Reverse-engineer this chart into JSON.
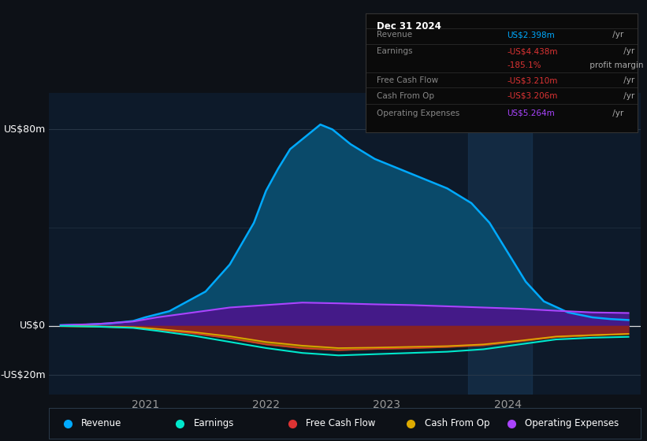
{
  "bg_color": "#0d1117",
  "plot_bg_color": "#0d1a2a",
  "grid_color": "#2a3a4a",
  "y_label_80": "US$80m",
  "y_label_0": "US$0",
  "y_label_neg20": "-US$20m",
  "ylim": [
    -28,
    95
  ],
  "xlim": [
    2020.2,
    2025.1
  ],
  "revenue_color": "#00aaff",
  "revenue_fill": "#0a4a6a",
  "earnings_color": "#00e8cc",
  "fcf_color": "#dd3333",
  "fcf_fill": "#882222",
  "cashfromop_color": "#ddaa00",
  "cashfromop_fill": "#886600",
  "opex_color": "#aa44ff",
  "opex_fill": "#441a88",
  "highlight_x_start": 2023.67,
  "highlight_x_end": 2024.2,
  "highlight_color": "#1a3a5a",
  "info_box": {
    "title": "Dec 31 2024",
    "bg": "#0a0a0a",
    "border": "#333333",
    "rows": [
      {
        "label": "Revenue",
        "value": "US$2.398m",
        "value_color": "#00aaff",
        "suffix": " /yr",
        "suffix_color": "#aaaaaa"
      },
      {
        "label": "Earnings",
        "value": "-US$4.438m",
        "value_color": "#dd3333",
        "suffix": " /yr",
        "suffix_color": "#aaaaaa"
      },
      {
        "label": "",
        "value": "-185.1%",
        "value_color": "#dd3333",
        "suffix": " profit margin",
        "suffix_color": "#aaaaaa"
      },
      {
        "label": "Free Cash Flow",
        "value": "-US$3.210m",
        "value_color": "#dd3333",
        "suffix": " /yr",
        "suffix_color": "#aaaaaa"
      },
      {
        "label": "Cash From Op",
        "value": "-US$3.206m",
        "value_color": "#dd3333",
        "suffix": " /yr",
        "suffix_color": "#aaaaaa"
      },
      {
        "label": "Operating Expenses",
        "value": "US$5.264m",
        "value_color": "#aa44ff",
        "suffix": " /yr",
        "suffix_color": "#aaaaaa"
      }
    ]
  },
  "legend": [
    {
      "label": "Revenue",
      "color": "#00aaff"
    },
    {
      "label": "Earnings",
      "color": "#00e8cc"
    },
    {
      "label": "Free Cash Flow",
      "color": "#dd3333"
    },
    {
      "label": "Cash From Op",
      "color": "#ddaa00"
    },
    {
      "label": "Operating Expenses",
      "color": "#aa44ff"
    }
  ],
  "x_revenue": [
    2020.3,
    2020.5,
    2020.7,
    2020.9,
    2021.0,
    2021.2,
    2021.5,
    2021.7,
    2021.9,
    2022.0,
    2022.1,
    2022.2,
    2022.35,
    2022.45,
    2022.55,
    2022.7,
    2022.9,
    2023.1,
    2023.3,
    2023.5,
    2023.7,
    2023.85,
    2024.0,
    2024.15,
    2024.3,
    2024.5,
    2024.7,
    2024.85,
    2025.0
  ],
  "y_revenue": [
    0.3,
    0.5,
    1.0,
    2.0,
    3.5,
    6.0,
    14.0,
    25.0,
    42.0,
    55.0,
    64.0,
    72.0,
    78.0,
    82.0,
    80.0,
    74.0,
    68.0,
    64.0,
    60.0,
    56.0,
    50.0,
    42.0,
    30.0,
    18.0,
    10.0,
    5.5,
    3.5,
    2.8,
    2.4
  ],
  "x_opex": [
    2020.3,
    2020.6,
    2020.9,
    2021.1,
    2021.4,
    2021.7,
    2022.0,
    2022.3,
    2022.6,
    2022.9,
    2023.2,
    2023.5,
    2023.8,
    2024.1,
    2024.4,
    2024.7,
    2025.0
  ],
  "y_opex": [
    0.3,
    0.8,
    1.8,
    3.5,
    5.5,
    7.5,
    8.5,
    9.5,
    9.2,
    8.8,
    8.5,
    8.0,
    7.5,
    7.0,
    6.2,
    5.5,
    5.264
  ],
  "x_earn": [
    2020.3,
    2020.6,
    2020.9,
    2021.1,
    2021.4,
    2021.7,
    2022.0,
    2022.3,
    2022.6,
    2022.9,
    2023.2,
    2023.5,
    2023.8,
    2024.1,
    2024.4,
    2024.7,
    2025.0
  ],
  "y_earn": [
    0.0,
    -0.3,
    -0.8,
    -2.0,
    -4.0,
    -6.5,
    -9.0,
    -11.0,
    -12.0,
    -11.5,
    -11.0,
    -10.5,
    -9.5,
    -7.5,
    -5.5,
    -4.8,
    -4.438
  ],
  "x_fcf": [
    2020.3,
    2020.6,
    2020.9,
    2021.1,
    2021.4,
    2021.7,
    2022.0,
    2022.3,
    2022.6,
    2022.9,
    2023.2,
    2023.5,
    2023.8,
    2024.1,
    2024.4,
    2024.7,
    2025.0
  ],
  "y_fcf": [
    0.0,
    -0.2,
    -0.6,
    -1.5,
    -3.0,
    -5.0,
    -7.5,
    -9.0,
    -9.8,
    -9.3,
    -9.0,
    -8.5,
    -7.8,
    -6.2,
    -4.5,
    -3.8,
    -3.21
  ],
  "x_cop": [
    2020.3,
    2020.6,
    2020.9,
    2021.1,
    2021.4,
    2021.7,
    2022.0,
    2022.3,
    2022.6,
    2022.9,
    2023.2,
    2023.5,
    2023.8,
    2024.1,
    2024.4,
    2024.7,
    2025.0
  ],
  "y_cop": [
    0.0,
    -0.15,
    -0.5,
    -1.2,
    -2.5,
    -4.2,
    -6.5,
    -8.0,
    -9.0,
    -8.8,
    -8.5,
    -8.2,
    -7.5,
    -6.0,
    -4.3,
    -3.7,
    -3.206
  ]
}
